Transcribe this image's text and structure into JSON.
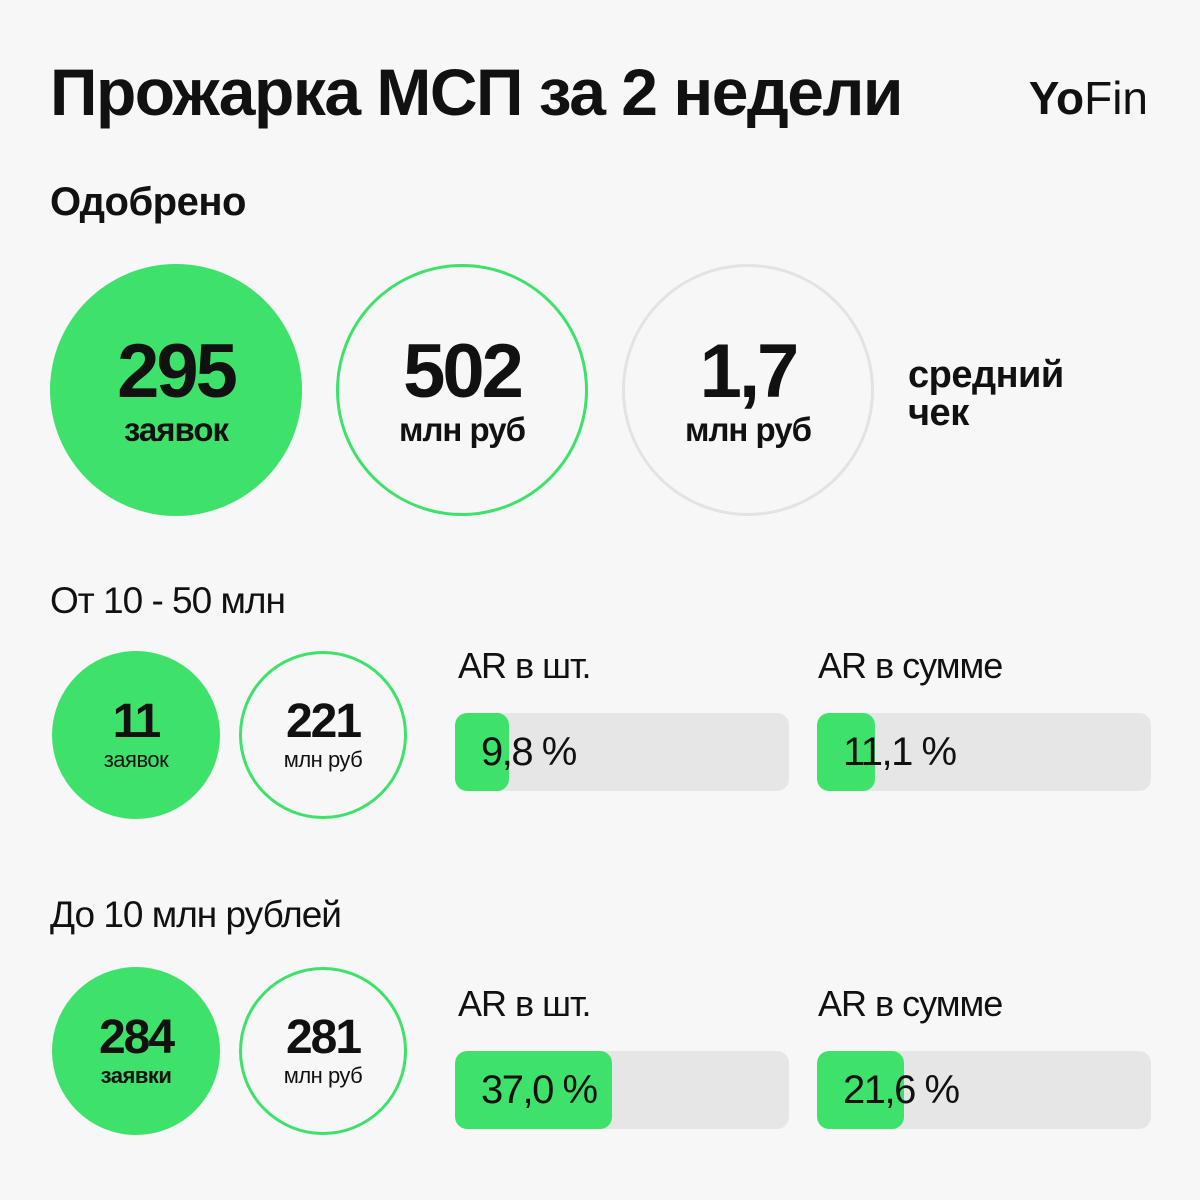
{
  "title": "Прожарка МСП за 2 недели",
  "logo": {
    "part1": "Yo",
    "part2": "Fin"
  },
  "approved": {
    "label": "Одобрено",
    "requests": {
      "value": "295",
      "unit": "заявок"
    },
    "amount": {
      "value": "502",
      "unit": "млн руб"
    },
    "avg_check": {
      "value": "1,7",
      "unit": "млн руб",
      "label_line1": "средний",
      "label_line2": "чек"
    }
  },
  "segment_10_50": {
    "label": "От 10 - 50 млн",
    "requests": {
      "value": "11",
      "unit": "заявок"
    },
    "amount": {
      "value": "221",
      "unit": "млн руб"
    },
    "ar_count": {
      "title": "AR в шт.",
      "text": "9,8 %",
      "percent": 9.8
    },
    "ar_sum": {
      "title": "AR в сумме",
      "text": "11,1 %",
      "percent": 11.1
    }
  },
  "segment_under_10": {
    "label": "До 10 млн рублей",
    "requests": {
      "value": "284",
      "unit": "заявки"
    },
    "amount": {
      "value": "281",
      "unit": "млн руб"
    },
    "ar_count": {
      "title": "AR в шт.",
      "text": "37,0 %",
      "percent": 37.0
    },
    "ar_sum": {
      "title": "AR в сумме",
      "text": "21,6 %",
      "percent": 21.6
    }
  },
  "colors": {
    "accent": "#3ee26a",
    "bar_track": "#e6e6e6",
    "background": "#f7f7f7",
    "text": "#111111"
  }
}
